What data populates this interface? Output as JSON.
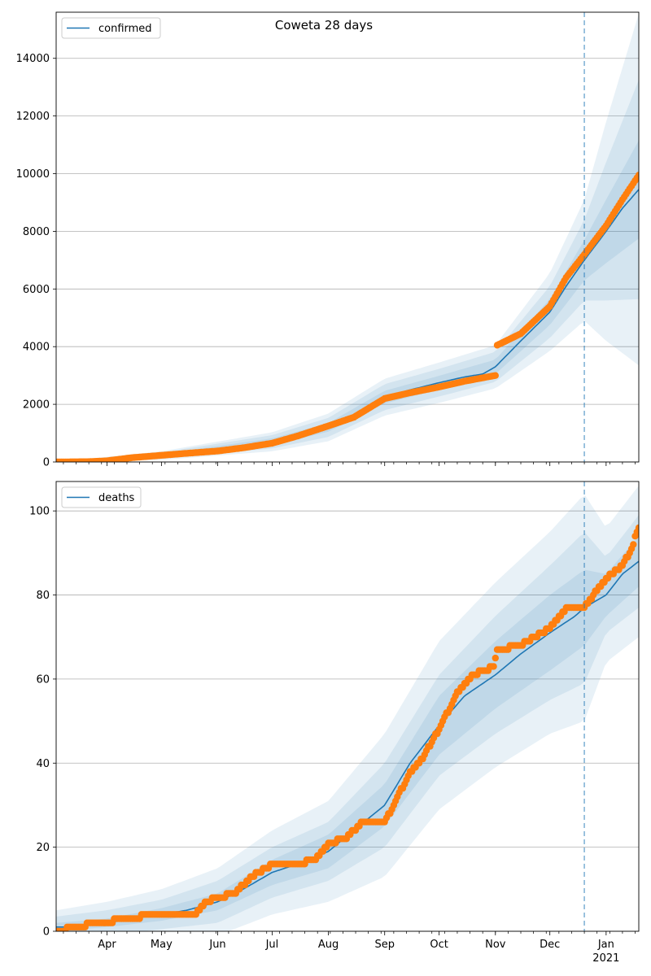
{
  "figure_title": "Coweta 28 days",
  "colors": {
    "model": "#1f77b4",
    "observed": "#ff7f0e",
    "band": "#1f77b4",
    "grid": "#b0b0b0"
  },
  "x_ticks": [
    {
      "date": "2020-04-01",
      "label": "Apr"
    },
    {
      "date": "2020-05-01",
      "label": "May"
    },
    {
      "date": "2020-06-01",
      "label": "Jun"
    },
    {
      "date": "2020-07-01",
      "label": "Jul"
    },
    {
      "date": "2020-08-01",
      "label": "Aug"
    },
    {
      "date": "2020-09-01",
      "label": "Sep"
    },
    {
      "date": "2020-10-01",
      "label": "Oct"
    },
    {
      "date": "2020-11-01",
      "label": "Nov"
    },
    {
      "date": "2020-12-01",
      "label": "Dec"
    },
    {
      "date": "2021-01-01",
      "label": "Jan",
      "sublabel": "2021"
    }
  ],
  "chart_data": [
    {
      "type": "line",
      "legend": "confirmed",
      "legend_position": "top-left",
      "grid": "horizontal",
      "xlim": [
        "2020-03-04",
        "2021-01-19"
      ],
      "ylim": [
        0,
        15600
      ],
      "yticks": [
        0,
        2000,
        4000,
        6000,
        8000,
        10000,
        12000,
        14000
      ],
      "forecast_start": "2020-12-20",
      "model": {
        "x": [
          "2020-03-04",
          "2020-03-20",
          "2020-04-01",
          "2020-04-15",
          "2020-05-01",
          "2020-05-15",
          "2020-06-01",
          "2020-06-15",
          "2020-07-01",
          "2020-07-15",
          "2020-08-01",
          "2020-08-15",
          "2020-09-01",
          "2020-09-15",
          "2020-10-01",
          "2020-10-15",
          "2020-10-25",
          "2020-11-01",
          "2020-11-15",
          "2020-12-01",
          "2020-12-10",
          "2020-12-20",
          "2021-01-01",
          "2021-01-10",
          "2021-01-19"
        ],
        "y": [
          0,
          20,
          60,
          120,
          220,
          320,
          420,
          520,
          700,
          900,
          1200,
          1600,
          2250,
          2500,
          2750,
          2950,
          3050,
          3300,
          4200,
          5200,
          6100,
          7000,
          8000,
          8800,
          9450
        ]
      },
      "bands": {
        "x": [
          "2020-03-04",
          "2020-05-01",
          "2020-07-01",
          "2020-08-01",
          "2020-09-01",
          "2020-10-01",
          "2020-11-01",
          "2020-12-01",
          "2020-12-20",
          "2021-01-01",
          "2021-01-19"
        ],
        "y": [
          0,
          220,
          700,
          1200,
          2250,
          2750,
          3300,
          5200,
          7000,
          8000,
          9450
        ],
        "widths": [
          [
            0,
            60,
            120,
            150,
            220,
            240,
            250,
            450,
            700,
            1100,
            1700
          ],
          [
            0,
            110,
            230,
            330,
            450,
            480,
            520,
            900,
            1400,
            2400,
            3800
          ],
          [
            0,
            150,
            330,
            480,
            640,
            700,
            750,
            1350,
            2100,
            3800,
            6100
          ]
        ]
      },
      "observed": {
        "x": [
          "2020-03-04",
          "2020-03-22",
          "2020-04-01",
          "2020-04-15",
          "2020-05-01",
          "2020-05-15",
          "2020-06-01",
          "2020-06-15",
          "2020-07-01",
          "2020-07-15",
          "2020-08-01",
          "2020-08-15",
          "2020-09-01",
          "2020-09-15",
          "2020-10-01",
          "2020-10-15",
          "2020-11-01",
          "2020-11-02",
          "2020-11-15",
          "2020-12-01",
          "2020-12-10",
          "2020-12-20",
          "2021-01-01",
          "2021-01-10",
          "2021-01-19"
        ],
        "y": [
          0,
          10,
          40,
          150,
          230,
          300,
          380,
          490,
          650,
          900,
          1250,
          1550,
          2200,
          2400,
          2600,
          2800,
          3000,
          4050,
          4450,
          5400,
          6400,
          7200,
          8200,
          9100,
          9950
        ]
      }
    },
    {
      "type": "line",
      "legend": "deaths",
      "legend_position": "top-left",
      "grid": "horizontal",
      "xlim": [
        "2020-03-04",
        "2021-01-19"
      ],
      "ylim": [
        0,
        107
      ],
      "yticks": [
        0,
        20,
        40,
        60,
        80,
        100
      ],
      "forecast_start": "2020-12-20",
      "model": {
        "x": [
          "2020-03-04",
          "2020-03-15",
          "2020-04-01",
          "2020-04-15",
          "2020-05-01",
          "2020-05-15",
          "2020-06-01",
          "2020-06-15",
          "2020-07-01",
          "2020-07-15",
          "2020-08-01",
          "2020-08-15",
          "2020-09-01",
          "2020-09-15",
          "2020-10-01",
          "2020-10-15",
          "2020-11-01",
          "2020-11-15",
          "2020-12-01",
          "2020-12-15",
          "2020-12-20",
          "2021-01-01",
          "2021-01-10",
          "2021-01-19"
        ],
        "y": [
          1,
          1,
          2,
          3,
          4,
          5,
          7,
          10,
          14,
          16,
          19,
          24,
          30,
          40,
          49,
          56,
          61,
          66,
          71,
          75,
          77,
          80,
          85,
          88
        ]
      },
      "bands": {
        "x": [
          "2020-03-04",
          "2020-04-01",
          "2020-05-01",
          "2020-06-01",
          "2020-07-01",
          "2020-08-01",
          "2020-09-01",
          "2020-10-01",
          "2020-11-01",
          "2020-12-01",
          "2020-12-20",
          "2021-01-01",
          "2021-01-19"
        ],
        "y": [
          1,
          2,
          4,
          7,
          14,
          19,
          30,
          49,
          61,
          71,
          77,
          80,
          88
        ],
        "widths": [
          [
            1,
            1,
            1.5,
            2,
            3,
            4,
            5,
            7,
            8,
            9,
            9,
            5,
            6
          ],
          [
            2.5,
            3,
            3.5,
            5,
            6,
            7,
            10,
            12,
            14,
            16,
            18,
            9,
            11
          ],
          [
            4,
            5,
            6,
            8,
            10,
            12,
            17,
            20,
            22,
            24,
            27,
            16,
            18
          ]
        ]
      },
      "observed": {
        "x": [
          "2020-03-04",
          "2020-03-26",
          "2020-04-15",
          "2020-04-25",
          "2020-05-01",
          "2020-05-20",
          "2020-05-25",
          "2020-06-01",
          "2020-06-10",
          "2020-06-20",
          "2020-07-01",
          "2020-07-15",
          "2020-07-25",
          "2020-08-01",
          "2020-08-10",
          "2020-08-20",
          "2020-09-01",
          "2020-09-05",
          "2020-09-15",
          "2020-09-20",
          "2020-10-01",
          "2020-10-10",
          "2020-10-20",
          "2020-10-31",
          "2020-11-02",
          "2020-11-15",
          "2020-12-01",
          "2020-12-10",
          "2020-12-20",
          "2021-01-01",
          "2021-01-10",
          "2021-01-15",
          "2021-01-19"
        ],
        "y": [
          0,
          2,
          3,
          4,
          4,
          4,
          7,
          8,
          9,
          13,
          16,
          16,
          17,
          21,
          22,
          26,
          26,
          29,
          38,
          40,
          48,
          56,
          61,
          63,
          67,
          68,
          72,
          77,
          77,
          84,
          87,
          91,
          96
        ]
      }
    }
  ]
}
